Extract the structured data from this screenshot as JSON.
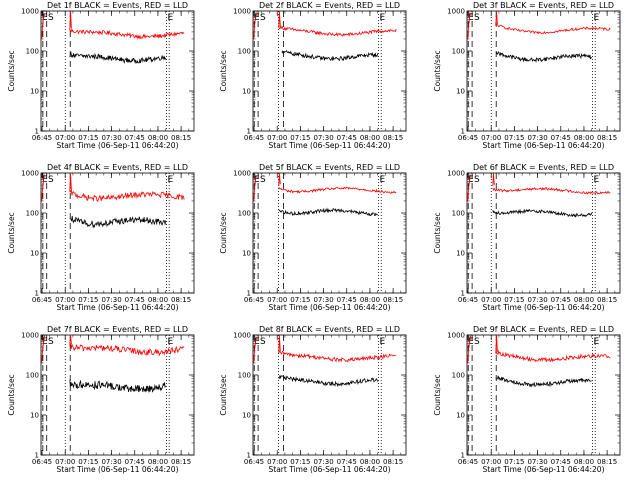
{
  "chart_data": [
    {
      "type": "line",
      "title": "Det 1f BLACK = Events, RED = LLD",
      "xlabel": "Start Time (06-Sep-11 06:44:20)",
      "ylabel": "Counts/sec",
      "yscale": "log",
      "ylim": [
        1,
        1000
      ],
      "xticks": [
        "06:45",
        "07:00",
        "07:15",
        "07:30",
        "07:45",
        "08:00",
        "08:15"
      ],
      "xlim_minutes_after_06_44_20": [
        0,
        99
      ],
      "yticks": [
        "1",
        "10",
        "100",
        "1000"
      ],
      "annotations": [
        "E",
        "S",
        "E"
      ],
      "series": [
        {
          "color": "#ff0000",
          "x_start": "07:03",
          "x_end": "08:17",
          "mean": 260,
          "noise": 0.05
        },
        {
          "color": "#000000",
          "x_start": "07:03",
          "x_end": "08:05",
          "mean": 65,
          "noise": 0.06
        }
      ]
    },
    {
      "type": "line",
      "title": "Det 2f BLACK = Events, RED = LLD",
      "xlabel": "Start Time (06-Sep-11 06:44:20)",
      "ylabel": "Counts/sec",
      "yscale": "log",
      "ylim": [
        1,
        1000
      ],
      "xticks": [
        "06:45",
        "07:00",
        "07:15",
        "07:30",
        "07:45",
        "08:00",
        "08:15"
      ],
      "xlim_minutes_after_06_44_20": [
        0,
        99
      ],
      "yticks": [
        "1",
        "10",
        "100",
        "1000"
      ],
      "annotations": [
        "E",
        "S",
        "E"
      ],
      "series": [
        {
          "color": "#ff0000",
          "x_start": "07:01",
          "x_end": "08:17",
          "mean": 290,
          "noise": 0.04
        },
        {
          "color": "#000000",
          "x_start": "07:03",
          "x_end": "08:05",
          "mean": 72,
          "noise": 0.05
        }
      ]
    },
    {
      "type": "line",
      "title": "Det 3f BLACK = Events, RED = LLD",
      "xlabel": "Start Time (06-Sep-11 06:44:20)",
      "ylabel": "Counts/sec",
      "yscale": "log",
      "ylim": [
        1,
        1000
      ],
      "xticks": [
        "06:45",
        "07:00",
        "07:15",
        "07:30",
        "07:45",
        "08:00",
        "08:15"
      ],
      "xlim_minutes_after_06_44_20": [
        0,
        99
      ],
      "yticks": [
        "1",
        "10",
        "100",
        "1000"
      ],
      "annotations": [
        "E",
        "S",
        "E"
      ],
      "series": [
        {
          "color": "#ff0000",
          "x_start": "07:03",
          "x_end": "08:17",
          "mean": 330,
          "noise": 0.03
        },
        {
          "color": "#000000",
          "x_start": "07:03",
          "x_end": "08:05",
          "mean": 68,
          "noise": 0.05
        }
      ]
    },
    {
      "type": "line",
      "title": "Det 4f BLACK = Events, RED = LLD",
      "xlabel": "Start Time (06-Sep-11 06:44:20)",
      "ylabel": "Counts/sec",
      "yscale": "log",
      "ylim": [
        1,
        1000
      ],
      "xticks": [
        "06:45",
        "07:00",
        "07:15",
        "07:30",
        "07:45",
        "08:00",
        "08:15"
      ],
      "xlim_minutes_after_06_44_20": [
        0,
        99
      ],
      "yticks": [
        "1",
        "10",
        "100",
        "1000"
      ],
      "annotations": [
        "E",
        "S",
        "E"
      ],
      "series": [
        {
          "color": "#ff0000",
          "x_start": "07:03",
          "x_end": "08:17",
          "mean": 260,
          "noise": 0.07
        },
        {
          "color": "#000000",
          "x_start": "07:03",
          "x_end": "08:05",
          "mean": 60,
          "noise": 0.08
        }
      ]
    },
    {
      "type": "line",
      "title": "Det 5f BLACK = Events, RED = LLD",
      "xlabel": "Start Time (06-Sep-11 06:44:20)",
      "ylabel": "Counts/sec",
      "yscale": "log",
      "ylim": [
        1,
        1000
      ],
      "xticks": [
        "06:45",
        "07:00",
        "07:15",
        "07:30",
        "07:45",
        "08:00",
        "08:15"
      ],
      "xlim_minutes_after_06_44_20": [
        0,
        99
      ],
      "yticks": [
        "1",
        "10",
        "100",
        "1000"
      ],
      "annotations": [
        "E",
        "S",
        "E"
      ],
      "series": [
        {
          "color": "#ff0000",
          "x_start": "07:01",
          "x_end": "08:17",
          "mean": 370,
          "noise": 0.03
        },
        {
          "color": "#000000",
          "x_start": "07:01",
          "x_end": "08:05",
          "mean": 105,
          "noise": 0.04
        }
      ]
    },
    {
      "type": "line",
      "title": "Det 6f BLACK = Events, RED = LLD",
      "xlabel": "Start Time (06-Sep-11 06:44:20)",
      "ylabel": "Counts/sec",
      "yscale": "log",
      "ylim": [
        1,
        1000
      ],
      "xticks": [
        "06:45",
        "07:00",
        "07:15",
        "07:30",
        "07:45",
        "08:00",
        "08:15"
      ],
      "xlim_minutes_after_06_44_20": [
        0,
        99
      ],
      "yticks": [
        "1",
        "10",
        "100",
        "1000"
      ],
      "annotations": [
        "E",
        "S",
        "E"
      ],
      "series": [
        {
          "color": "#ff0000",
          "x_start": "07:01",
          "x_end": "08:17",
          "mean": 360,
          "noise": 0.03
        },
        {
          "color": "#000000",
          "x_start": "07:01",
          "x_end": "08:05",
          "mean": 100,
          "noise": 0.04
        }
      ]
    },
    {
      "type": "line",
      "title": "Det 7f BLACK = Events, RED = LLD",
      "xlabel": "Start Time (06-Sep-11 06:44:20)",
      "ylabel": "Counts/sec",
      "yscale": "log",
      "ylim": [
        1,
        1000
      ],
      "xticks": [
        "06:45",
        "07:00",
        "07:15",
        "07:30",
        "07:45",
        "08:00",
        "08:15"
      ],
      "xlim_minutes_after_06_44_20": [
        0,
        99
      ],
      "yticks": [
        "1",
        "10",
        "100",
        "1000"
      ],
      "annotations": [
        "E",
        "S",
        "E"
      ],
      "series": [
        {
          "color": "#ff0000",
          "x_start": "07:03",
          "x_end": "08:17",
          "mean": 420,
          "noise": 0.08
        },
        {
          "color": "#000000",
          "x_start": "07:03",
          "x_end": "08:05",
          "mean": 50,
          "noise": 0.1
        }
      ]
    },
    {
      "type": "line",
      "title": "Det 8f BLACK = Events, RED = LLD",
      "xlabel": "Start Time (06-Sep-11 06:44:20)",
      "ylabel": "Counts/sec",
      "yscale": "log",
      "ylim": [
        1,
        1000
      ],
      "xticks": [
        "06:45",
        "07:00",
        "07:15",
        "07:30",
        "07:45",
        "08:00",
        "08:15"
      ],
      "xlim_minutes_after_06_44_20": [
        0,
        99
      ],
      "yticks": [
        "1",
        "10",
        "100",
        "1000"
      ],
      "annotations": [
        "E",
        "S",
        "E"
      ],
      "series": [
        {
          "color": "#ff0000",
          "x_start": "07:01",
          "x_end": "08:17",
          "mean": 270,
          "noise": 0.05
        },
        {
          "color": "#000000",
          "x_start": "07:01",
          "x_end": "08:05",
          "mean": 68,
          "noise": 0.05
        }
      ]
    },
    {
      "type": "line",
      "title": "Det 9f BLACK = Events, RED = LLD",
      "xlabel": "Start Time (06-Sep-11 06:44:20)",
      "ylabel": "Counts/sec",
      "yscale": "log",
      "ylim": [
        1,
        1000
      ],
      "xticks": [
        "06:45",
        "07:00",
        "07:15",
        "07:30",
        "07:45",
        "08:00",
        "08:15"
      ],
      "xlim_minutes_after_06_44_20": [
        0,
        99
      ],
      "yticks": [
        "1",
        "10",
        "100",
        "1000"
      ],
      "annotations": [
        "E",
        "S",
        "E"
      ],
      "series": [
        {
          "color": "#ff0000",
          "x_start": "07:03",
          "x_end": "08:17",
          "mean": 270,
          "noise": 0.05
        },
        {
          "color": "#000000",
          "x_start": "07:03",
          "x_end": "08:05",
          "mean": 65,
          "noise": 0.05
        }
      ]
    }
  ]
}
